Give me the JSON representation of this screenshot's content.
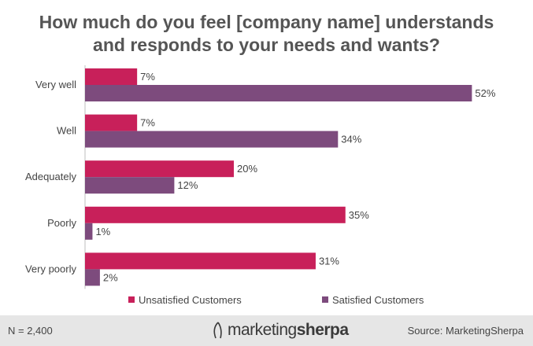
{
  "chart_data": {
    "type": "bar",
    "orientation": "horizontal",
    "title": "How much do you feel [company name] understands\nand responds to your needs and wants?",
    "categories": [
      "Very well",
      "Well",
      "Adequately",
      "Poorly",
      "Very poorly"
    ],
    "series": [
      {
        "name": "Unsatisfied Customers",
        "color": "#c8205a",
        "values": [
          7,
          7,
          20,
          35,
          31
        ],
        "labels": [
          "7%",
          "7%",
          "20%",
          "35%",
          "31%"
        ]
      },
      {
        "name": "Satisfied Customers",
        "color": "#7d4b7d",
        "values": [
          52,
          34,
          12,
          1,
          2
        ],
        "labels": [
          "52%",
          "34%",
          "12%",
          "1%",
          "2%"
        ]
      }
    ],
    "xlim": [
      0,
      100
    ],
    "grid": false,
    "legend_position": "bottom"
  },
  "footer": {
    "note": "N = 2,400",
    "logo_part1": "marketing",
    "logo_part2": "sherpa",
    "source": "Source: MarketingSherpa"
  },
  "colors": {
    "footer_bg": "#e6e6e6",
    "title": "#555555"
  }
}
